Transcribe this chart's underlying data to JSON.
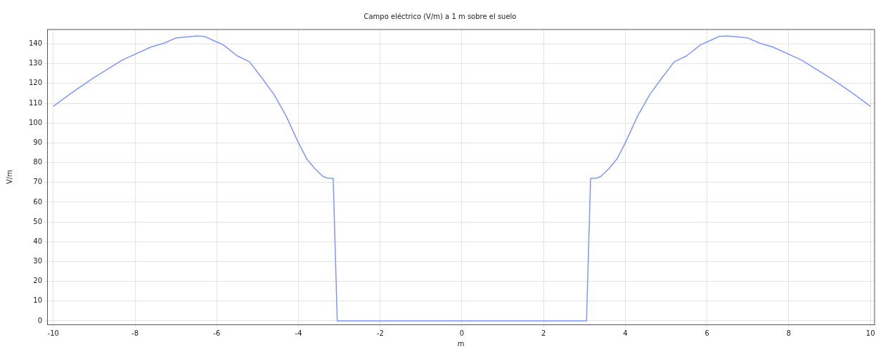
{
  "chart_data": {
    "type": "line",
    "title": "Campo eléctrico (V/m) a 1 m sobre el suelo",
    "xlabel": "m",
    "ylabel": "V/m",
    "x": [
      -10,
      -9.5,
      -9,
      -8.3,
      -7.6,
      -7.3,
      -7,
      -6.5,
      -6.3,
      -6,
      -5.85,
      -5.5,
      -5.2,
      -4.9,
      -4.6,
      -4.3,
      -4,
      -3.8,
      -3.6,
      -3.4,
      -3.3,
      -3.15,
      -3.05,
      3.05,
      3.15,
      3.3,
      3.4,
      3.6,
      3.8,
      4,
      4.3,
      4.6,
      4.9,
      5.2,
      5.5,
      5.85,
      6,
      6.3,
      6.5,
      7,
      7.3,
      7.6,
      8.3,
      9,
      9.5,
      10
    ],
    "series": [
      {
        "color": "#7f97ff",
        "values": [
          108.5,
          116,
          123,
          132,
          138.5,
          140.3,
          143,
          144,
          143.8,
          141,
          139.7,
          134,
          131,
          123,
          114.5,
          103.5,
          90,
          82,
          77,
          73,
          72.2,
          72,
          0,
          0,
          72,
          72.2,
          73,
          77,
          82,
          90,
          103.5,
          114.5,
          123,
          131,
          134,
          139.7,
          141,
          143.8,
          144,
          143,
          140.3,
          138.5,
          132,
          123,
          116,
          108.5
        ]
      }
    ],
    "xlim": [
      -10.15,
      10.1
    ],
    "ylim": [
      -1.8,
      147.3
    ],
    "xticks": [
      -10,
      -8,
      -6,
      -4,
      -2,
      0,
      2,
      4,
      6,
      8,
      10
    ],
    "yticks": [
      0,
      10,
      20,
      30,
      40,
      50,
      60,
      70,
      80,
      90,
      100,
      110,
      120,
      130,
      140
    ],
    "grid": true,
    "legend": false,
    "marker": "none",
    "line_style": "solid"
  }
}
